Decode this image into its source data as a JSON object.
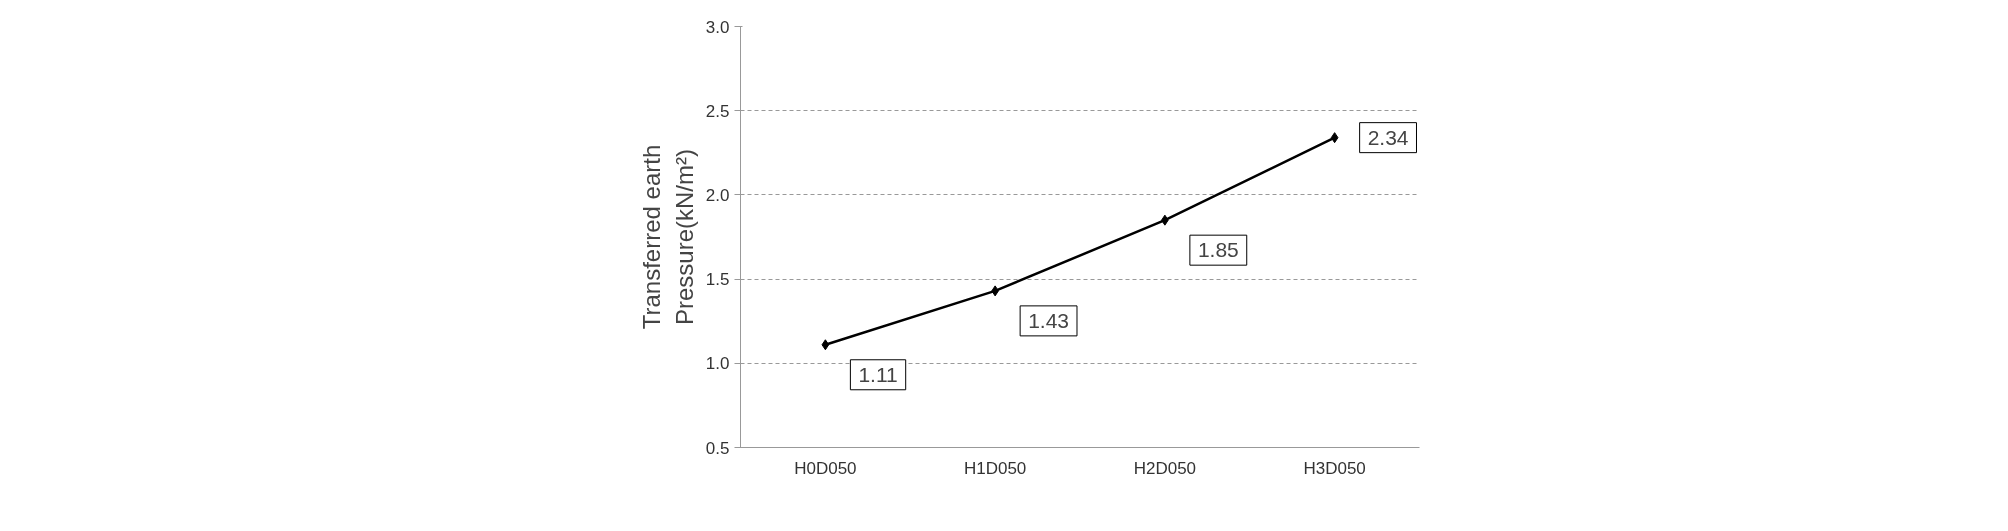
{
  "chart_data": {
    "type": "line",
    "ylabel": "Transferred earth Pressure(kN/m²)",
    "categories": [
      "H0D050",
      "H1D050",
      "H2D050",
      "H3D050"
    ],
    "series": [
      {
        "color": "#000000",
        "values": [
          1.11,
          1.43,
          1.85,
          2.34
        ]
      }
    ],
    "ylim": [
      0.5,
      3.0
    ],
    "yticks": [
      0.5,
      {
        "value": 1,
        "label": "1.0"
      },
      1.5,
      {
        "value": 2,
        "label": "2.0"
      },
      2.5,
      {
        "value": 3,
        "label": "3.0"
      }
    ],
    "grid": "y",
    "marker": "diamond",
    "line_style": "solid",
    "data_labels": true
  }
}
